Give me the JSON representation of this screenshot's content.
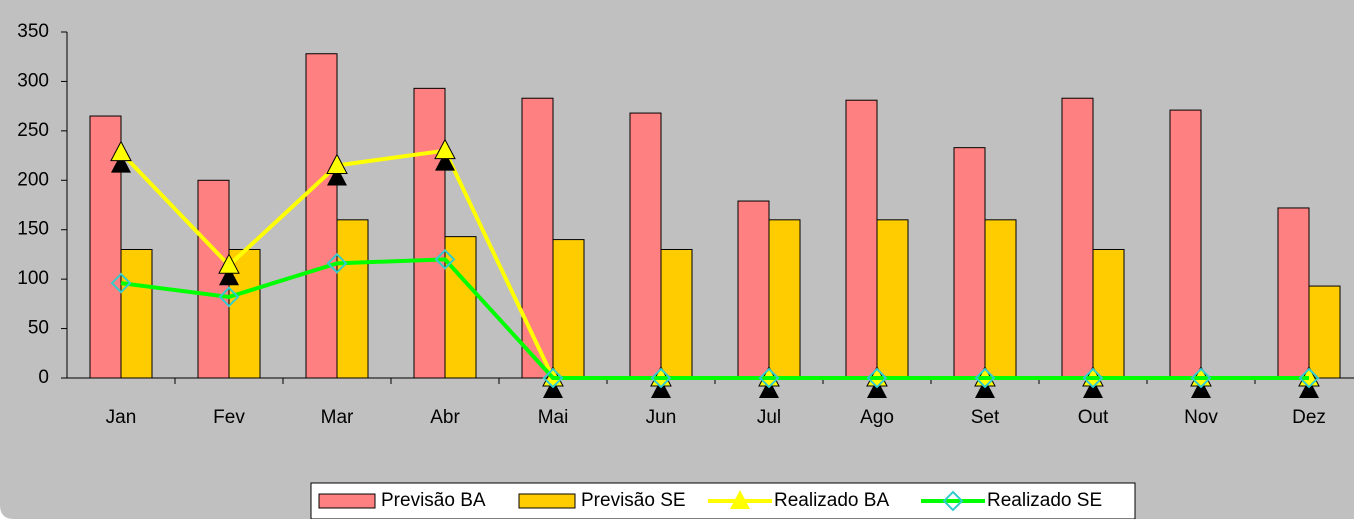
{
  "chart_data": {
    "type": "bar_line",
    "categories": [
      "Jan",
      "Fev",
      "Mar",
      "Abr",
      "Mai",
      "Jun",
      "Jul",
      "Ago",
      "Set",
      "Out",
      "Nov",
      "Dez"
    ],
    "series": [
      {
        "name": "Previsão BA",
        "kind": "bar",
        "color": "#ff8080",
        "values": [
          265,
          200,
          328,
          293,
          283,
          268,
          179,
          281,
          233,
          283,
          271,
          172
        ]
      },
      {
        "name": "Previsão SE",
        "kind": "bar",
        "color": "#ffcc00",
        "values": [
          130,
          130,
          160,
          143,
          140,
          130,
          160,
          160,
          160,
          130,
          0,
          93
        ]
      },
      {
        "name": "Realizado BA",
        "kind": "line",
        "marker": "triangle",
        "color": "#ffff00",
        "values": [
          228,
          114,
          215,
          230,
          0,
          0,
          0,
          0,
          0,
          0,
          0,
          0
        ]
      },
      {
        "name": "Realizado SE",
        "kind": "line",
        "marker": "diamond",
        "color": "#00ff00",
        "marker_color": "#33cccc",
        "values": [
          96,
          82,
          116,
          120,
          0,
          0,
          0,
          0,
          0,
          0,
          0,
          0
        ]
      }
    ],
    "ylim": [
      0,
      350
    ],
    "yticks": [
      0,
      50,
      100,
      150,
      200,
      250,
      300,
      350
    ],
    "legend": "bottom"
  }
}
